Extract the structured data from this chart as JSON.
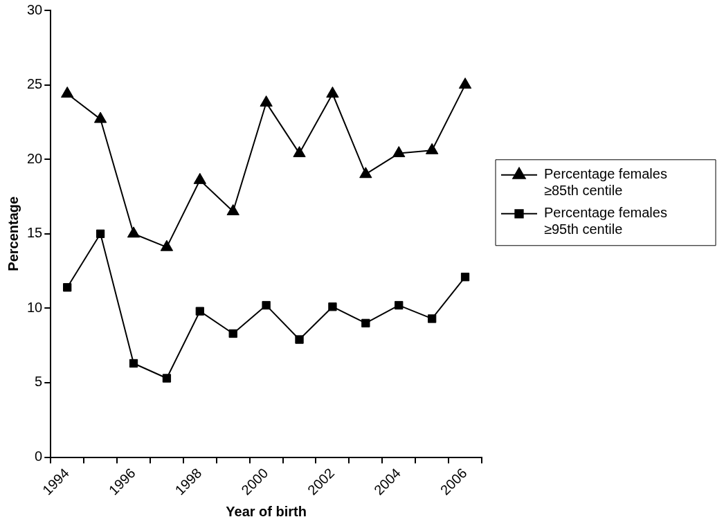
{
  "chart_data": {
    "type": "line",
    "xlabel": "Year of birth",
    "ylabel": "Percentage",
    "categories": [
      "1994",
      null,
      "1996",
      null,
      "1998",
      null,
      "2000",
      null,
      "2002",
      null,
      "2004",
      null,
      "2006"
    ],
    "series": [
      {
        "name": "Percentage females ≥85th centile",
        "color": "#000000",
        "marker": "triangle",
        "values": [
          24.4,
          22.7,
          15.0,
          14.1,
          18.6,
          16.5,
          23.8,
          20.4,
          24.4,
          19.0,
          20.4,
          20.6,
          25.0
        ]
      },
      {
        "name": "Percentage females ≥95th centile",
        "color": "#000000",
        "marker": "square",
        "values": [
          11.4,
          15.0,
          6.3,
          5.3,
          9.8,
          8.3,
          10.2,
          7.9,
          10.1,
          9.0,
          10.2,
          9.3,
          12.1
        ]
      }
    ],
    "ylim": [
      0,
      30
    ],
    "yticks": [
      0,
      5,
      10,
      15,
      20,
      25,
      30
    ],
    "grid": false,
    "legend": "right",
    "line_style": "solid"
  }
}
